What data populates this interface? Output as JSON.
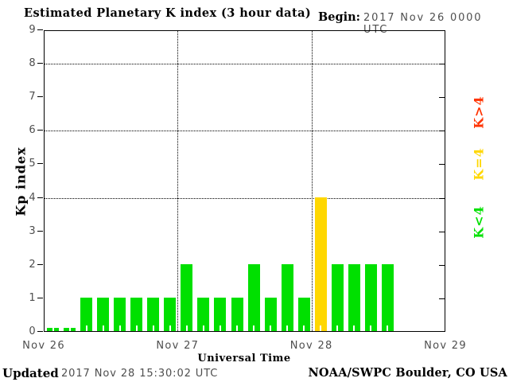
{
  "header": {
    "title": "Estimated Planetary K index (3 hour data)",
    "begin_label": "Begin:",
    "begin_value": "2017 Nov 26 0000 UTC"
  },
  "footer": {
    "updated_label": "Updated",
    "updated_value": "2017 Nov 28 15:30:02 UTC",
    "attribution": "NOAA/SWPC Boulder, CO USA"
  },
  "legend": {
    "items": [
      {
        "label": "K>4",
        "color": "#ff3300"
      },
      {
        "label": "K=4",
        "color": "#ffd700"
      },
      {
        "label": "K<4",
        "color": "#00e000"
      }
    ]
  },
  "chart_data": {
    "type": "bar",
    "title": "Estimated Planetary K index (3 hour data)",
    "xlabel": "Universal Time",
    "ylabel": "Kp index",
    "begin": "2017 Nov 26 0000 UTC",
    "bin_hours": 3,
    "n_slots": 24,
    "ylim": [
      0,
      9
    ],
    "y_ticks": [
      0,
      1,
      2,
      3,
      4,
      5,
      6,
      7,
      8,
      9
    ],
    "gridlines_y": [
      4,
      6,
      8
    ],
    "grid": "dotted",
    "x_ticks": [
      "Nov 26",
      "Nov 27",
      "Nov 28",
      "Nov 29"
    ],
    "values": [
      0,
      0,
      1,
      1,
      1,
      1,
      1,
      1,
      2,
      1,
      1,
      1,
      2,
      1,
      2,
      1,
      4,
      2,
      2,
      2,
      2
    ],
    "bar_color_rule": {
      "lt4": "#00e000",
      "eq4": "#ffd700",
      "gt4": "#ff3300"
    },
    "legend_position": "right"
  }
}
